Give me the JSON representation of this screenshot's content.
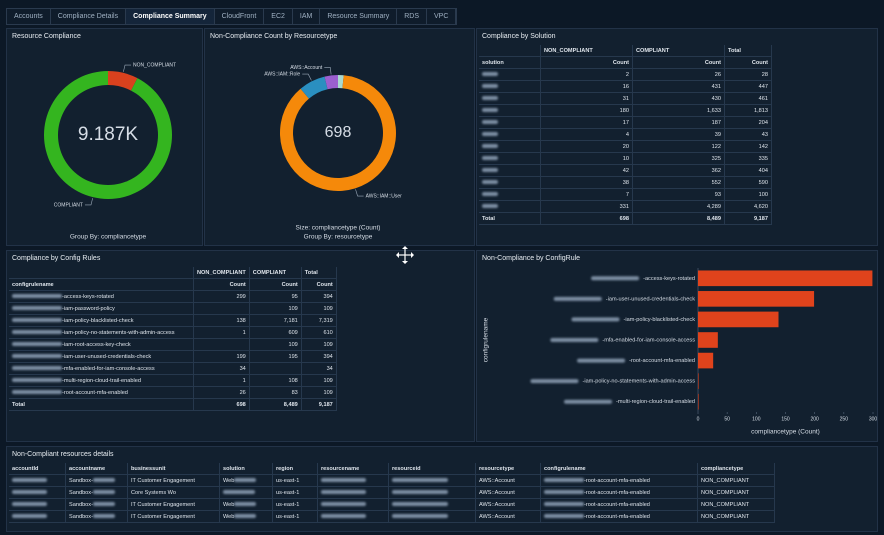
{
  "tabs": [
    "Accounts",
    "Compliance Details",
    "Compliance Summary",
    "CloudFront",
    "EC2",
    "IAM",
    "Resource Summary",
    "RDS",
    "VPC"
  ],
  "active_tab": 2,
  "resource_compliance": {
    "title": "Resource Compliance",
    "type": "donut",
    "center_label": "9.187K",
    "footer": [
      "Group By: compliancetype"
    ],
    "segments": [
      {
        "name": "NON_COMPLIANT",
        "color": "#d9411e",
        "value": 698
      },
      {
        "name": "COMPLIANT",
        "color": "#34b51f",
        "value": 8489
      }
    ]
  },
  "noncompliance_by_resourcetype": {
    "title": "Non-Compliance Count by Resourcetype",
    "type": "donut",
    "center_label": "698",
    "footer": [
      "Size: compliancetype (Count)",
      "Group By: resourcetype"
    ],
    "segments": [
      {
        "name": null,
        "color": "#a9d9cf",
        "value": 11
      },
      {
        "name": "AWS::IAM::User",
        "color": "#f5890a",
        "value": 609
      },
      {
        "name": "AWS::IAM::Role",
        "color": "#2a8fc0",
        "value": 52
      },
      {
        "name": "AWS::Account",
        "color": "#9b5fcf",
        "value": 26
      }
    ]
  },
  "compliance_by_solution": {
    "title": "Compliance by Solution",
    "row_header": "solution",
    "group_headers": [
      "NON_COMPLIANT",
      "COMPLIANT",
      "Total"
    ],
    "subheader": "Count",
    "rows": [
      [
        null,
        "2",
        "26",
        "28"
      ],
      [
        null,
        "16",
        "431",
        "447"
      ],
      [
        null,
        "31",
        "430",
        "461"
      ],
      [
        null,
        "180",
        "1,633",
        "1,813"
      ],
      [
        null,
        "17",
        "187",
        "204"
      ],
      [
        null,
        "4",
        "39",
        "43"
      ],
      [
        null,
        "20",
        "122",
        "142"
      ],
      [
        null,
        "10",
        "325",
        "335"
      ],
      [
        null,
        "42",
        "362",
        "404"
      ],
      [
        null,
        "38",
        "552",
        "590"
      ],
      [
        null,
        "7",
        "93",
        "100"
      ],
      [
        null,
        "331",
        "4,289",
        "4,620"
      ],
      [
        "Total",
        "698",
        "8,489",
        "9,187"
      ]
    ]
  },
  "compliance_by_config_rules": {
    "title": "Compliance by Config Rules",
    "row_header": "configrulename",
    "group_headers": [
      "NON_COMPLIANT",
      "COMPLIANT",
      "Total"
    ],
    "subheader": "Count",
    "rows": [
      [
        "-access-keys-rotated",
        "299",
        "95",
        "394"
      ],
      [
        "-iam-password-policy",
        null,
        "109",
        "109"
      ],
      [
        "-iam-policy-blacklisted-check",
        "138",
        "7,181",
        "7,319"
      ],
      [
        "-iam-policy-no-statements-with-admin-access",
        "1",
        "609",
        "610"
      ],
      [
        "-iam-root-access-key-check",
        null,
        "109",
        "109"
      ],
      [
        "-iam-user-unused-credentials-check",
        "199",
        "195",
        "394"
      ],
      [
        "-mfa-enabled-for-iam-console-access",
        "34",
        null,
        "34"
      ],
      [
        "-multi-region-cloud-trail-enabled",
        "1",
        "108",
        "109"
      ],
      [
        "-root-account-mfa-enabled",
        "26",
        "83",
        "109"
      ],
      [
        "Total",
        "698",
        "8,489",
        "9,187"
      ]
    ]
  },
  "noncompliance_by_configrule": {
    "type": "bar",
    "title": "Non-Compliance by ConfigRule",
    "color": "#e0431c",
    "categories": [
      "-access-keys-rotated",
      "-iam-user-unused-credentials-check",
      "-iam-policy-blacklisted-check",
      "-mfa-enabled-for-iam-console-access",
      "-root-account-mfa-enabled",
      "-iam-policy-no-statements-with-admin-access",
      "-multi-region-cloud-trail-enabled"
    ],
    "values": [
      299,
      199,
      138,
      34,
      26,
      1,
      1
    ],
    "xlim": [
      0,
      300
    ],
    "xticks": [
      0,
      50,
      100,
      150,
      200,
      250,
      300
    ],
    "xlabel": "compliancetype (Count)",
    "ylabel": "configrulename"
  },
  "resource_details": {
    "title": "Non-Compliant resources details",
    "columns": [
      "accountId",
      "accountname",
      "businessunit",
      "solution",
      "region",
      "resourcename",
      "resourceid",
      "resourcetype",
      "configrulename",
      "compliancetype"
    ],
    "rows": [
      [
        null,
        "Sandbox-",
        "IT Customer Engagement",
        "Web",
        "us-east-1",
        null,
        null,
        "AWS::Account",
        "-root-account-mfa-enabled",
        "NON_COMPLIANT"
      ],
      [
        null,
        "Sandbox-",
        "Core Systems Wo",
        null,
        "us-east-1",
        null,
        null,
        "AWS::Account",
        "-root-account-mfa-enabled",
        "NON_COMPLIANT"
      ],
      [
        null,
        "Sandbox-",
        "IT Customer Engagement",
        "Web",
        "us-east-1",
        null,
        null,
        "AWS::Account",
        "-root-account-mfa-enabled",
        "NON_COMPLIANT"
      ],
      [
        null,
        "Sandbox-",
        "IT Customer Engagement",
        "Web",
        "us-east-1",
        null,
        null,
        "AWS::Account",
        "-root-account-mfa-enabled",
        "NON_COMPLIANT"
      ]
    ]
  }
}
